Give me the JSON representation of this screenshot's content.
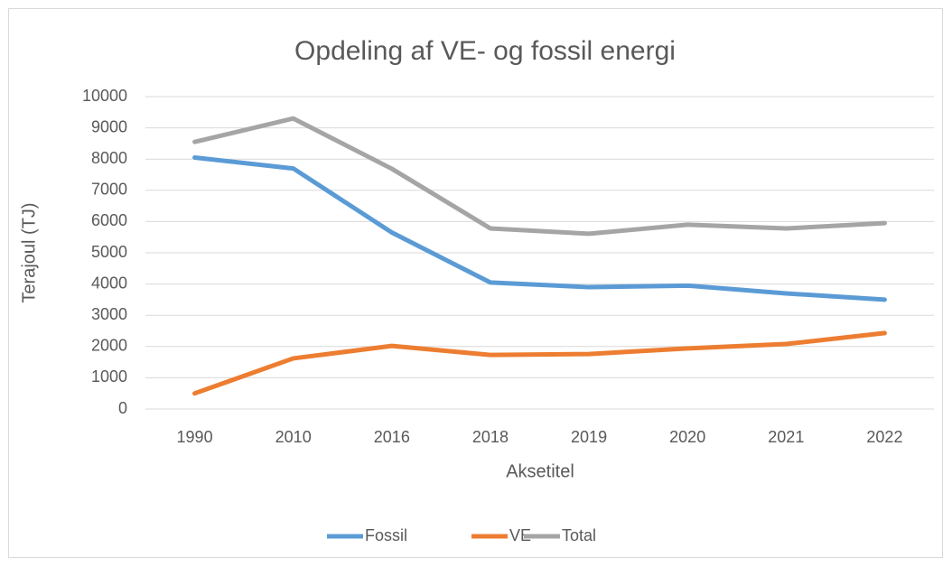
{
  "chart_data": {
    "type": "line",
    "title": "Opdeling af VE- og fossil energi",
    "x_label": "Aksetitel",
    "y_label": "Terajoul (TJ)",
    "categories": [
      "1990",
      "2010",
      "2016",
      "2018",
      "2019",
      "2020",
      "2021",
      "2022"
    ],
    "series": [
      {
        "name": "Fossil",
        "color": "#5b9bd5",
        "values": [
          8050,
          7700,
          5650,
          4050,
          3900,
          3950,
          3700,
          3500
        ]
      },
      {
        "name": "VE",
        "color": "#ed7d31",
        "values": [
          500,
          1620,
          2020,
          1730,
          1760,
          1940,
          2080,
          2430
        ]
      },
      {
        "name": "Total",
        "color": "#a5a5a5",
        "values": [
          8550,
          9300,
          7690,
          5780,
          5610,
          5900,
          5780,
          5950
        ]
      }
    ],
    "ylim": [
      0,
      10000
    ],
    "yticks": [
      0,
      1000,
      2000,
      3000,
      4000,
      5000,
      6000,
      7000,
      8000,
      9000,
      10000
    ],
    "grid": true,
    "legend": "bottom"
  }
}
